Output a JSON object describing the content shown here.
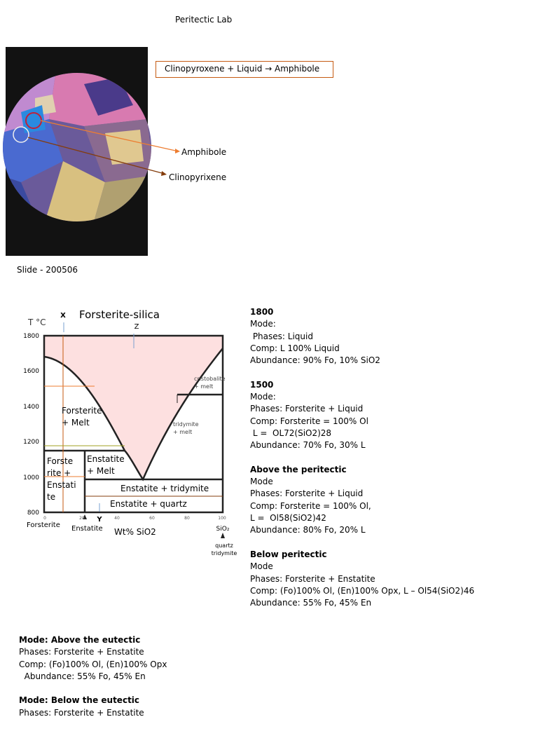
{
  "title": "Peritectic Lab",
  "reaction": "Clinopyroxene + Liquid → Amphibole",
  "photo_labels": [
    "Amphibole",
    "Clinopyrixene"
  ],
  "slide": "Slide - 200506",
  "diagram": {
    "title": "Forsterite-silica",
    "y_label": "T °C",
    "yticks": [
      "1800",
      "1600",
      "1400",
      "1200",
      "1000",
      "800"
    ],
    "xticks": [
      "0",
      "20",
      "40",
      "60",
      "80",
      "100"
    ],
    "markers": [
      "X",
      "Y",
      "Z"
    ],
    "x_label": "Wt% SiO2",
    "end_labels": [
      "Forsterite",
      "Enstatite",
      "SiO₂"
    ],
    "silica_phases": [
      "quartz",
      "tridymite"
    ],
    "fields": [
      [
        "Forsterite",
        "+ Melt"
      ],
      [
        "Forste",
        "rite +",
        "Enstati",
        "te"
      ],
      [
        "Enstatite",
        "+ Melt"
      ],
      [
        "Enstatite + tridymite"
      ],
      [
        "Enstatite + quartz"
      ],
      [
        "cristobalite",
        "+ melt"
      ],
      [
        "tridymite",
        "+ melt"
      ]
    ]
  },
  "notes": [
    {
      "heading": "1800",
      "lines": [
        "Mode:",
        " Phases: Liquid",
        "Comp: L 100% Liquid",
        "Abundance: 90% Fo, 10% SiO2"
      ]
    },
    {
      "heading": "1500",
      "lines": [
        "Mode:",
        "Phases: Forsterite + Liquid",
        "Comp: Forsterite = 100% Ol",
        " L =  OL72(SiO2)28",
        "Abundance: 70% Fo, 30% L"
      ]
    },
    {
      "heading": "Above the peritectic",
      "lines": [
        "Mode",
        "Phases: Forsterite + Liquid",
        "Comp: Forsterite = 100% Ol,",
        "L =  Ol58(SiO2)42",
        "Abundance: 80% Fo, 20% L"
      ]
    },
    {
      "heading": "Below peritectic",
      "lines": [
        "Mode",
        "Phases: Forsterite + Enstatite",
        "Comp: (Fo)100% Ol, (En)100% Opx, L – Ol54(SiO2)46",
        "Abundance: 55% Fo, 45% En"
      ]
    }
  ],
  "eutectic_notes": [
    {
      "heading": "Mode: Above the eutectic",
      "lines": [
        "Phases: Forsterite + Enstatite",
        "Comp: (Fo)100% Ol, (En)100% Opx",
        "  Abundance: 55% Fo, 45% En"
      ]
    },
    {
      "heading": "Mode: Below the eutectic",
      "lines": [
        "Phases: Forsterite + Enstatite"
      ]
    }
  ]
}
